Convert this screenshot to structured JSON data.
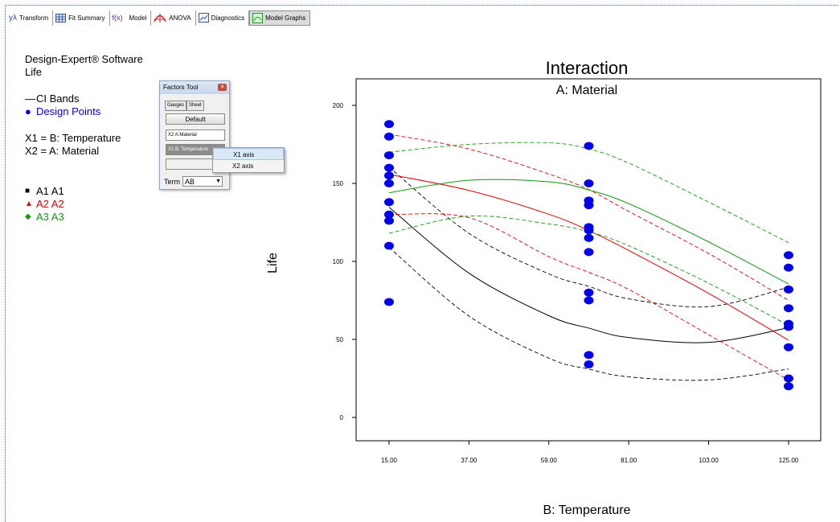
{
  "toolbar": {
    "buttons": [
      {
        "label": "Transform",
        "icon": "y-lambda-icon"
      },
      {
        "label": "Fit Summary",
        "icon": "table-grid-icon"
      },
      {
        "label": "Model",
        "icon": "fx-icon"
      },
      {
        "label": "ANOVA",
        "icon": "anova-curve-icon"
      },
      {
        "label": "Diagnostics",
        "icon": "diagnostics-chart-icon"
      },
      {
        "label": "Model Graphs",
        "icon": "model-graphs-icon"
      }
    ],
    "icon_text": {
      "transform": "yλ",
      "model": "f(x)"
    }
  },
  "legend": {
    "software": "Design-Expert® Software",
    "response": "Life",
    "ci_bands": "CI Bands",
    "design_points": "Design Points",
    "x1": "X1 = B: Temperature",
    "x2": "X2 = A: Material",
    "a1": "A1 A1",
    "a2": "A2 A2",
    "a3": "A3 A3"
  },
  "factors_tool": {
    "title": "Factors Tool",
    "tab_gauges": "Gauges",
    "tab_sheet": "Sheet",
    "default_button": "Default",
    "x2_field": "X2  A:Material",
    "x1_field": "X1  B: Temperature",
    "term_label": "Term",
    "term_value": "AB"
  },
  "context_menu": {
    "items": [
      "X1 axis",
      "X2 axis"
    ]
  },
  "colors": {
    "A1": "#000000",
    "A2": "#e00000",
    "A3": "#119911",
    "points": "#0000ee"
  },
  "chart_data": {
    "type": "line",
    "title": "Interaction",
    "subtitle": "A: Material",
    "xlabel": "B: Temperature",
    "ylabel": "Life",
    "xlim": [
      15,
      125
    ],
    "ylim": [
      0,
      200
    ],
    "x_ticks": [
      "15.00",
      "37.00",
      "59.00",
      "81.00",
      "103.00",
      "125.00"
    ],
    "y_ticks": [
      "0",
      "50",
      "100",
      "150",
      "200"
    ],
    "series": [
      {
        "name": "A1 A1",
        "color": "#000000",
        "x": [
          15,
          37,
          59,
          70,
          81,
          103,
          125
        ],
        "fit": [
          134.75,
          92.5,
          65.2,
          57.25,
          51.2,
          48.1,
          57.5
        ],
        "lower": [
          109.0,
          65.0,
          38.0,
          31.0,
          26.0,
          24.0,
          31.0
        ],
        "upper": [
          160.5,
          118.0,
          92.0,
          84.0,
          76.0,
          71.0,
          83.5
        ]
      },
      {
        "name": "A2 A2",
        "color": "#e00000",
        "x": [
          15,
          37,
          59,
          70,
          81,
          103,
          125
        ],
        "fit": [
          155.75,
          145.5,
          130.2,
          119.75,
          107.0,
          79.5,
          49.5
        ],
        "lower": [
          130.0,
          128.0,
          103.0,
          93.0,
          82.0,
          53.0,
          24.0
        ],
        "upper": [
          181.5,
          172.0,
          156.0,
          146.0,
          132.0,
          105.0,
          75.0
        ]
      },
      {
        "name": "A3 A3",
        "color": "#119911",
        "x": [
          15,
          37,
          59,
          70,
          81,
          103,
          125
        ],
        "fit": [
          144.0,
          152.0,
          151.0,
          145.75,
          137.0,
          112.5,
          85.5
        ],
        "lower": [
          118.0,
          129.0,
          124.0,
          119.0,
          110.0,
          86.0,
          59.0
        ],
        "upper": [
          170.0,
          175.0,
          176.0,
          172.0,
          163.0,
          138.0,
          112.0
        ]
      }
    ],
    "design_points": [
      {
        "x": 15,
        "y": [
          188,
          180,
          168,
          160,
          155,
          150,
          138,
          130,
          126,
          110,
          74
        ]
      },
      {
        "x": 70,
        "y": [
          174,
          150,
          139,
          136,
          122,
          120,
          115,
          106,
          80,
          75,
          40,
          34
        ]
      },
      {
        "x": 125,
        "y": [
          104,
          96,
          82,
          70,
          60,
          58,
          45,
          25,
          20
        ]
      }
    ]
  }
}
